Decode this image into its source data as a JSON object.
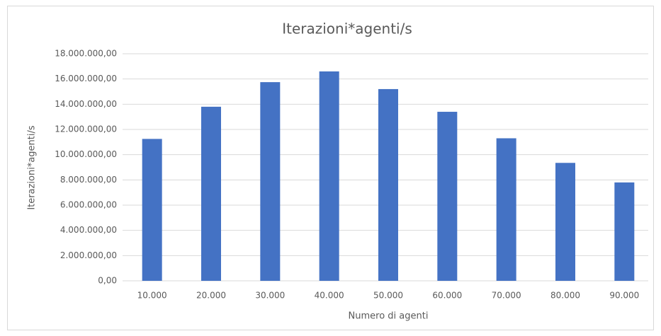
{
  "chart_data": {
    "type": "bar",
    "title": "Iterazioni*agenti/s",
    "xlabel": "Numero di agenti",
    "ylabel": "Iterazioni*agenti/s",
    "categories": [
      "10.000",
      "20.000",
      "30.000",
      "40.000",
      "50.000",
      "60.000",
      "70.000",
      "80.000",
      "90.000"
    ],
    "values": [
      11250000,
      13800000,
      15750000,
      16600000,
      15200000,
      13400000,
      11300000,
      9350000,
      7800000
    ],
    "color": "#4472c4",
    "ylim": [
      0,
      18000000
    ],
    "yticks": [
      {
        "value": 0,
        "label": "0,00"
      },
      {
        "value": 2000000,
        "label": "2.000.000,00"
      },
      {
        "value": 4000000,
        "label": "4.000.000,00"
      },
      {
        "value": 6000000,
        "label": "6.000.000,00"
      },
      {
        "value": 8000000,
        "label": "8.000.000,00"
      },
      {
        "value": 10000000,
        "label": "10.000.000,00"
      },
      {
        "value": 12000000,
        "label": "12.000.000,00"
      },
      {
        "value": 14000000,
        "label": "14.000.000,00"
      },
      {
        "value": 16000000,
        "label": "16.000.000,00"
      },
      {
        "value": 18000000,
        "label": "18.000.000,00"
      }
    ],
    "grid": true
  }
}
